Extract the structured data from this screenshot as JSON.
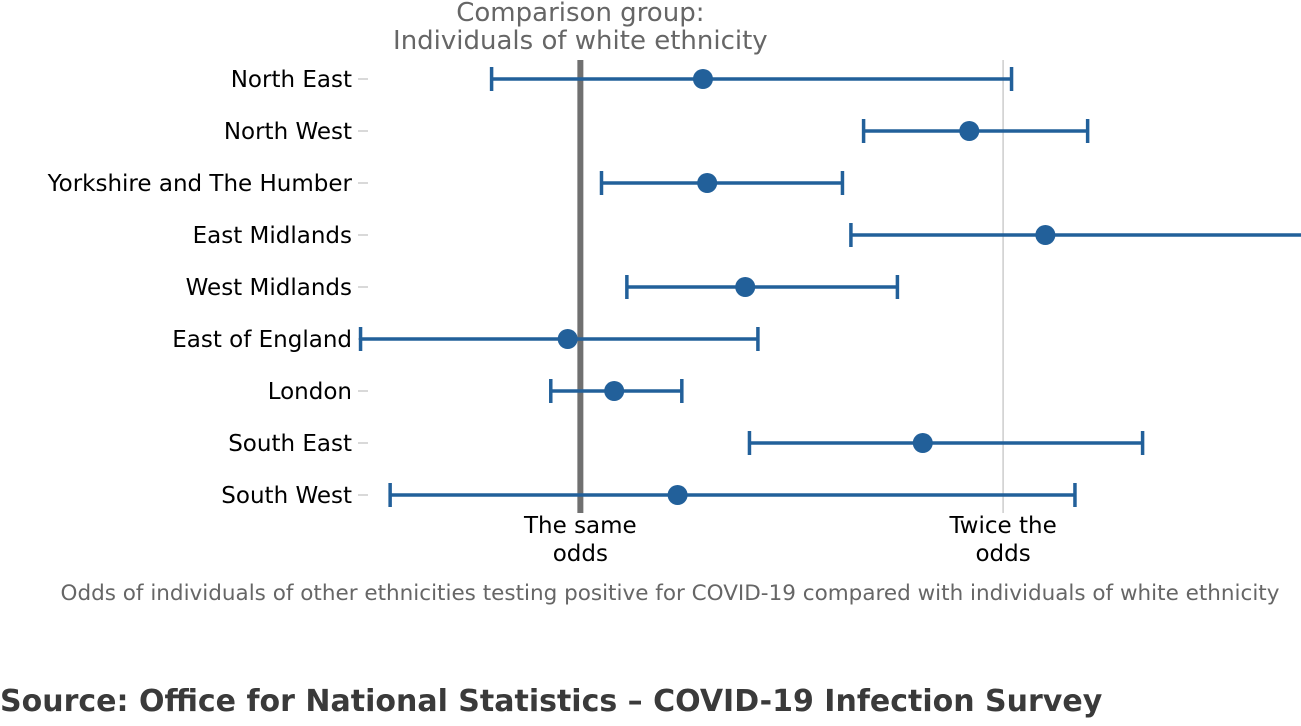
{
  "chart_data": {
    "type": "forest",
    "comparison_label": [
      "Comparison group:",
      "Individuals of white ethnicity"
    ],
    "xlabel": "Odds of individuals of other ethnicities testing positive for COVID-19 compared with individuals of white ethnicity",
    "x_ticks": [
      {
        "value": 1,
        "label": [
          "The same",
          "odds"
        ]
      },
      {
        "value": 2,
        "label": [
          "Twice the",
          "odds"
        ]
      }
    ],
    "xlim": [
      0.5,
      2.7
    ],
    "categories": [
      "North East",
      "North West",
      "Yorkshire and The Humber",
      "East Midlands",
      "West Midlands",
      "East of England",
      "London",
      "South East",
      "South West"
    ],
    "series": [
      {
        "estimate": [
          1.29,
          1.92,
          1.3,
          2.1,
          1.39,
          0.97,
          1.08,
          1.81,
          1.23
        ],
        "lower": [
          0.79,
          1.67,
          1.05,
          1.64,
          1.11,
          0.48,
          0.93,
          1.4,
          0.55
        ],
        "upper": [
          2.02,
          2.2,
          1.62,
          2.71,
          1.75,
          1.42,
          1.24,
          2.33,
          2.17
        ]
      }
    ],
    "colors": {
      "series": "#22609a",
      "reference": "#707070",
      "gridline": "#cccccc",
      "text": "#000000",
      "muted": "#666666"
    }
  },
  "source": "Source: Office for National Statistics – COVID-19 Infection Survey"
}
